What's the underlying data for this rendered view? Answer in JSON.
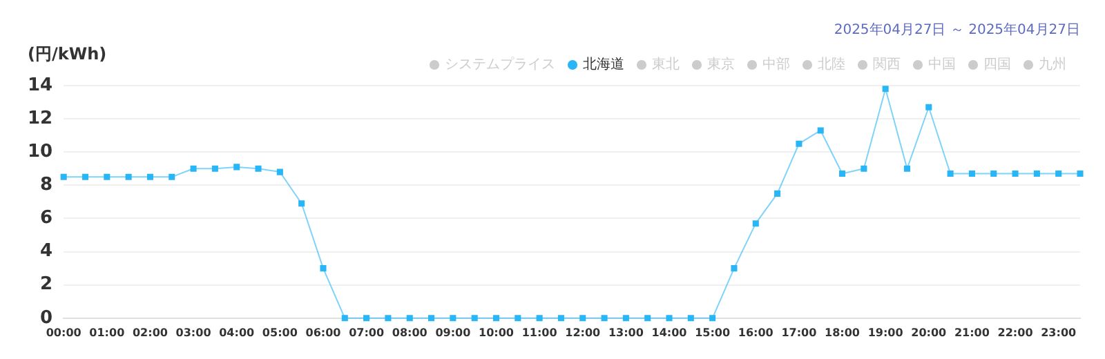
{
  "chart_data": {
    "type": "line",
    "subtitle": "2025年04月27日 ～ 2025年04月27日",
    "ylabel": "(円/kWh)",
    "categories": [
      "00:00",
      null,
      "01:00",
      null,
      "02:00",
      null,
      "03:00",
      null,
      "04:00",
      null,
      "05:00",
      null,
      "06:00",
      null,
      "07:00",
      null,
      "08:00",
      null,
      "09:00",
      null,
      "10:00",
      null,
      "11:00",
      null,
      "12:00",
      null,
      "13:00",
      null,
      "14:00",
      null,
      "15:00",
      null,
      "16:00",
      null,
      "17:00",
      null,
      "18:00",
      null,
      "19:00",
      null,
      "20:00",
      null,
      "21:00",
      null,
      "22:00",
      null,
      "23:00",
      null
    ],
    "series": [
      {
        "name": "システムプライス",
        "color": "#cccccc",
        "values": [
          null,
          null,
          null,
          null,
          null,
          null,
          null,
          null,
          null,
          null,
          null,
          null,
          null,
          null,
          null,
          null,
          null,
          null,
          null,
          null,
          null,
          null,
          null,
          null,
          null,
          null,
          null,
          null,
          null,
          null,
          null,
          null,
          null,
          null,
          null,
          null,
          null,
          null,
          null,
          null,
          null,
          null,
          null,
          null,
          null,
          null,
          null,
          null
        ]
      },
      {
        "name": "北海道",
        "color": "#29b6f6",
        "values": [
          8.5,
          8.5,
          8.5,
          8.5,
          8.5,
          8.5,
          9.0,
          9.0,
          9.1,
          9.0,
          8.8,
          6.9,
          3.0,
          0,
          0,
          0,
          0,
          0,
          0,
          0,
          0,
          0,
          0,
          0,
          0,
          0,
          0,
          0,
          0,
          0,
          0,
          3.0,
          5.7,
          7.5,
          10.5,
          11.3,
          8.7,
          9.0,
          13.8,
          9.0,
          12.7,
          8.7,
          8.7,
          8.7,
          8.7,
          8.7,
          8.7,
          8.7
        ]
      },
      {
        "name": "東北",
        "color": "#cccccc",
        "values": [
          null,
          null,
          null,
          null,
          null,
          null,
          null,
          null,
          null,
          null,
          null,
          null,
          null,
          null,
          null,
          null,
          null,
          null,
          null,
          null,
          null,
          null,
          null,
          null,
          null,
          null,
          null,
          null,
          null,
          null,
          null,
          null,
          null,
          null,
          null,
          null,
          null,
          null,
          null,
          null,
          null,
          null,
          null,
          null,
          null,
          null,
          null,
          null
        ]
      },
      {
        "name": "東京",
        "color": "#cccccc",
        "values": [
          null,
          null,
          null,
          null,
          null,
          null,
          null,
          null,
          null,
          null,
          null,
          null,
          null,
          null,
          null,
          null,
          null,
          null,
          null,
          null,
          null,
          null,
          null,
          null,
          null,
          null,
          null,
          null,
          null,
          null,
          null,
          null,
          null,
          null,
          null,
          null,
          null,
          null,
          null,
          null,
          null,
          null,
          null,
          null,
          null,
          null,
          null,
          null
        ]
      },
      {
        "name": "中部",
        "color": "#cccccc",
        "values": [
          null,
          null,
          null,
          null,
          null,
          null,
          null,
          null,
          null,
          null,
          null,
          null,
          null,
          null,
          null,
          null,
          null,
          null,
          null,
          null,
          null,
          null,
          null,
          null,
          null,
          null,
          null,
          null,
          null,
          null,
          null,
          null,
          null,
          null,
          null,
          null,
          null,
          null,
          null,
          null,
          null,
          null,
          null,
          null,
          null,
          null,
          null,
          null
        ]
      },
      {
        "name": "北陸",
        "color": "#cccccc",
        "values": [
          null,
          null,
          null,
          null,
          null,
          null,
          null,
          null,
          null,
          null,
          null,
          null,
          null,
          null,
          null,
          null,
          null,
          null,
          null,
          null,
          null,
          null,
          null,
          null,
          null,
          null,
          null,
          null,
          null,
          null,
          null,
          null,
          null,
          null,
          null,
          null,
          null,
          null,
          null,
          null,
          null,
          null,
          null,
          null,
          null,
          null,
          null,
          null
        ]
      },
      {
        "name": "関西",
        "color": "#cccccc",
        "values": [
          null,
          null,
          null,
          null,
          null,
          null,
          null,
          null,
          null,
          null,
          null,
          null,
          null,
          null,
          null,
          null,
          null,
          null,
          null,
          null,
          null,
          null,
          null,
          null,
          null,
          null,
          null,
          null,
          null,
          null,
          null,
          null,
          null,
          null,
          null,
          null,
          null,
          null,
          null,
          null,
          null,
          null,
          null,
          null,
          null,
          null,
          null,
          null
        ]
      },
      {
        "name": "中国",
        "color": "#cccccc",
        "values": [
          null,
          null,
          null,
          null,
          null,
          null,
          null,
          null,
          null,
          null,
          null,
          null,
          null,
          null,
          null,
          null,
          null,
          null,
          null,
          null,
          null,
          null,
          null,
          null,
          null,
          null,
          null,
          null,
          null,
          null,
          null,
          null,
          null,
          null,
          null,
          null,
          null,
          null,
          null,
          null,
          null,
          null,
          null,
          null,
          null,
          null,
          null,
          null
        ]
      },
      {
        "name": "四国",
        "color": "#cccccc",
        "values": [
          null,
          null,
          null,
          null,
          null,
          null,
          null,
          null,
          null,
          null,
          null,
          null,
          null,
          null,
          null,
          null,
          null,
          null,
          null,
          null,
          null,
          null,
          null,
          null,
          null,
          null,
          null,
          null,
          null,
          null,
          null,
          null,
          null,
          null,
          null,
          null,
          null,
          null,
          null,
          null,
          null,
          null,
          null,
          null,
          null,
          null,
          null,
          null
        ]
      },
      {
        "name": "九州",
        "color": "#cccccc",
        "values": [
          null,
          null,
          null,
          null,
          null,
          null,
          null,
          null,
          null,
          null,
          null,
          null,
          null,
          null,
          null,
          null,
          null,
          null,
          null,
          null,
          null,
          null,
          null,
          null,
          null,
          null,
          null,
          null,
          null,
          null,
          null,
          null,
          null,
          null,
          null,
          null,
          null,
          null,
          null,
          null,
          null,
          null,
          null,
          null,
          null,
          null,
          null,
          null
        ]
      }
    ],
    "ylim": [
      0,
      14
    ],
    "yticks": [
      0,
      2,
      4,
      6,
      8,
      10,
      12,
      14
    ],
    "grid": "y",
    "legend": "top right",
    "marker": "square",
    "line_style": "solid"
  }
}
